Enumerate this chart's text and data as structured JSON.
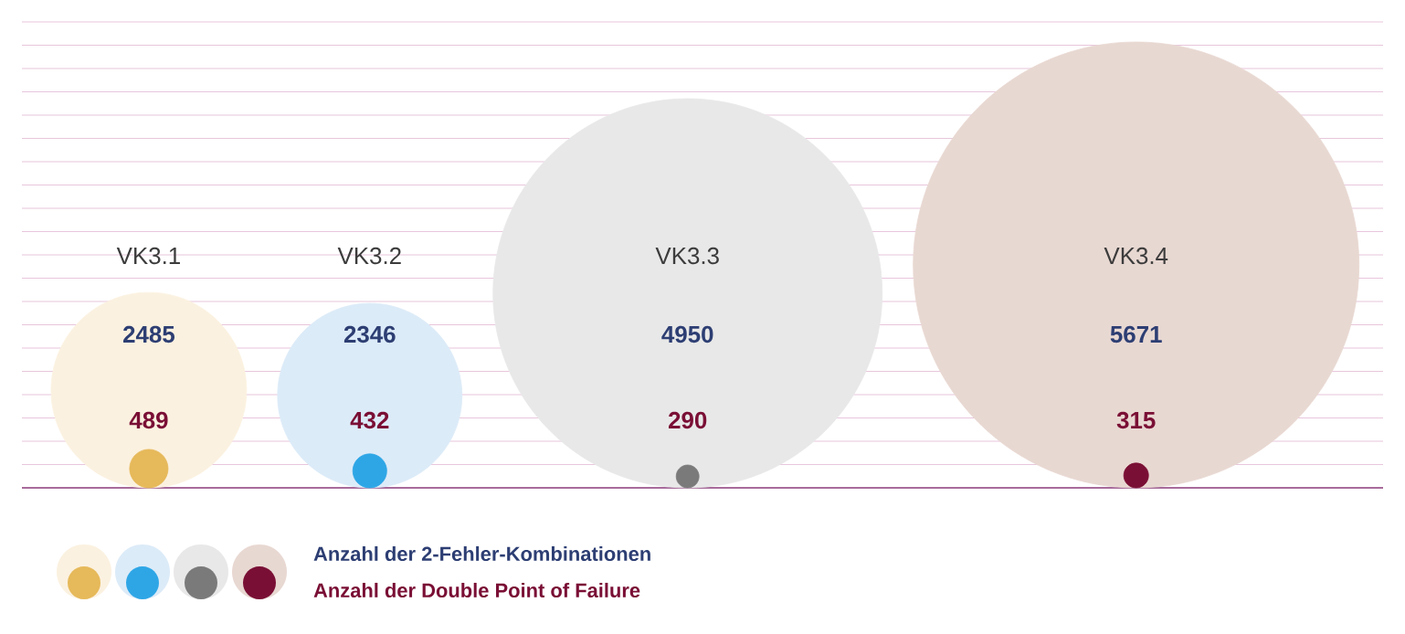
{
  "chart_data": {
    "type": "other",
    "categories": [
      "VK3.1",
      "VK3.2",
      "VK3.3",
      "VK3.4"
    ],
    "series": [
      {
        "name": "Anzahl der 2-Fehler-Kombinationen",
        "color": "#2d3e73",
        "colors": [
          "#fbf1e0",
          "#dcebf8",
          "#e8e8e8",
          "#e8d8d2"
        ],
        "values": [
          2485,
          2346,
          4950,
          5671
        ]
      },
      {
        "name": "Anzahl der Double Point of Failure",
        "color": "#7a0f35",
        "colors": [
          "#e6b95a",
          "#2ea6e6",
          "#7a7a7a",
          "#7a0f35"
        ],
        "values": [
          489,
          432,
          290,
          315
        ]
      }
    ],
    "data_labels": true,
    "legend": "bottom left"
  }
}
